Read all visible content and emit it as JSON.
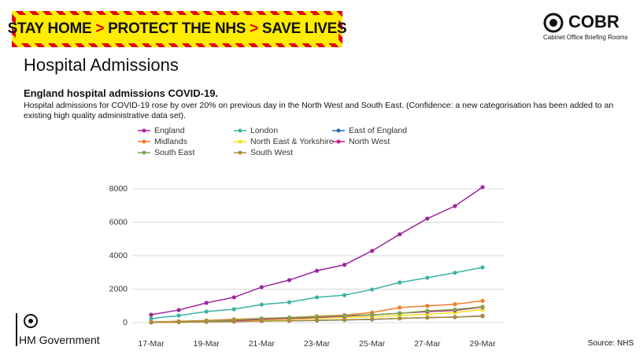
{
  "banner": [
    "STAY HOME",
    "PROTECT THE NHS",
    "SAVE LIVES"
  ],
  "logo": {
    "title": "COBR",
    "subtitle": "Cabinet Office Briefing Rooms"
  },
  "heading": "Hospital Admissions",
  "footer": {
    "government": "HM Government",
    "source": "Source: NHS"
  },
  "chart_data": {
    "type": "line",
    "title": "England hospital admissions COVID-19.",
    "subtitle": "Hospital admissions for COVID-19 rose by over 20% on previous day in the North West and South East. (Confidence: a new categorisation has been added to an existing high quality administrative data set).",
    "categories": [
      "17-Mar",
      null,
      "19-Mar",
      null,
      "21-Mar",
      null,
      "23-Mar",
      null,
      "25-Mar",
      null,
      "27-Mar",
      null,
      "29-Mar"
    ],
    "series": [
      {
        "name": "England",
        "color": "#a0259f",
        "values": [
          470,
          750,
          1180,
          1510,
          2120,
          2540,
          3100,
          3460,
          4290,
          5280,
          6220,
          6970,
          8100
        ]
      },
      {
        "name": "London",
        "color": "#3bb3a4",
        "values": [
          240,
          420,
          660,
          800,
          1080,
          1220,
          1510,
          1640,
          1980,
          2400,
          2680,
          2980,
          3300
        ]
      },
      {
        "name": "East of England",
        "color": "#1f6fb5",
        "values": [
          10,
          30,
          50,
          70,
          100,
          110,
          130,
          160,
          190,
          250,
          300,
          330,
          400
        ]
      },
      {
        "name": "Midlands",
        "color": "#f07d2a",
        "values": [
          40,
          80,
          130,
          200,
          250,
          300,
          380,
          450,
          600,
          900,
          1000,
          1100,
          1300
        ]
      },
      {
        "name": "North East & Yorkshire",
        "color": "#f2e31a",
        "values": [
          10,
          20,
          60,
          100,
          150,
          200,
          250,
          300,
          350,
          420,
          500,
          600,
          780
        ]
      },
      {
        "name": "North West",
        "color": "#c0188f",
        "values": [
          20,
          40,
          80,
          120,
          200,
          250,
          310,
          380,
          460,
          560,
          650,
          730,
          930
        ]
      },
      {
        "name": "South East",
        "color": "#7aa84a",
        "values": [
          20,
          50,
          100,
          150,
          250,
          300,
          350,
          420,
          470,
          550,
          700,
          780,
          950
        ]
      },
      {
        "name": "South West",
        "color": "#b08a3a",
        "values": [
          10,
          20,
          40,
          60,
          90,
          110,
          140,
          170,
          200,
          250,
          300,
          330,
          380
        ]
      }
    ],
    "ylim": [
      0,
      8000
    ],
    "yticks": [
      0,
      2000,
      4000,
      6000,
      8000
    ],
    "grid": true,
    "legend": "top"
  }
}
